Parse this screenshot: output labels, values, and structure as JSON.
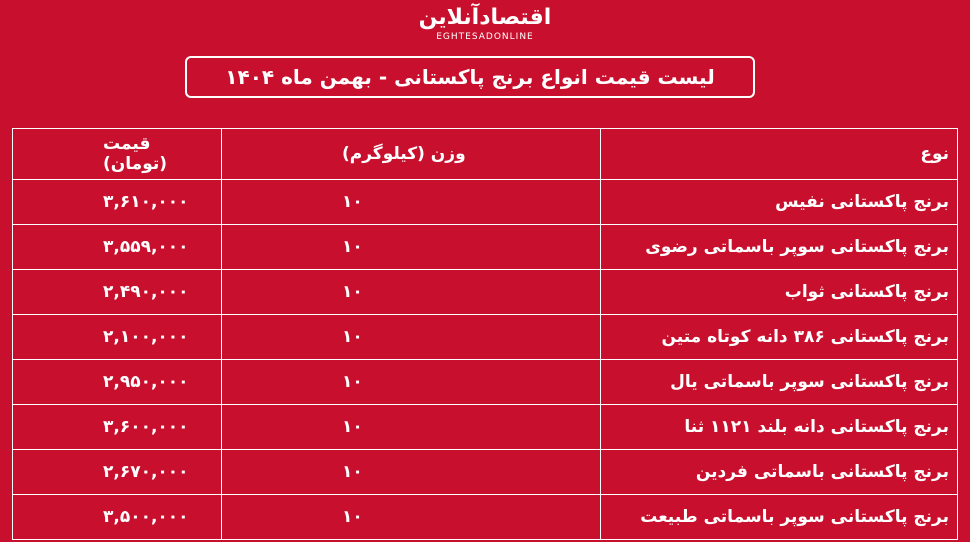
{
  "header": {
    "logo": "اقتصادآنلاین",
    "logo_sub": "EGHTESADONLINE",
    "title": "لیست قیمت انواع برنج پاکستانی - بهمن ماه ۱۴۰۴"
  },
  "table": {
    "columns": [
      "نوع",
      "وزن (کیلوگرم)",
      "قیمت (تومان)"
    ],
    "rows": [
      [
        "برنج پاکستانی نفیس",
        "۱۰",
        "۳,۶۱۰,۰۰۰"
      ],
      [
        "برنج پاکستانی سوپر باسماتی رضوی",
        "۱۰",
        "۳,۵۵۹,۰۰۰"
      ],
      [
        "برنج پاکستانی ثواب",
        "۱۰",
        "۲,۴۹۰,۰۰۰"
      ],
      [
        "برنج پاکستانی ۳۸۶ دانه کوتاه متین",
        "۱۰",
        "۲,۱۰۰,۰۰۰"
      ],
      [
        "برنج پاکستانی سوپر باسماتی یال",
        "۱۰",
        "۲,۹۵۰,۰۰۰"
      ],
      [
        "برنج پاکستانی دانه بلند ۱۱۲۱ ثنا",
        "۱۰",
        "۳,۶۰۰,۰۰۰"
      ],
      [
        "برنج پاکستانی باسماتی فردین",
        "۱۰",
        "۲,۶۷۰,۰۰۰"
      ],
      [
        "برنج پاکستانی سوپر باسماتی طبیعت",
        "۱۰",
        "۳,۵۰۰,۰۰۰"
      ]
    ]
  }
}
